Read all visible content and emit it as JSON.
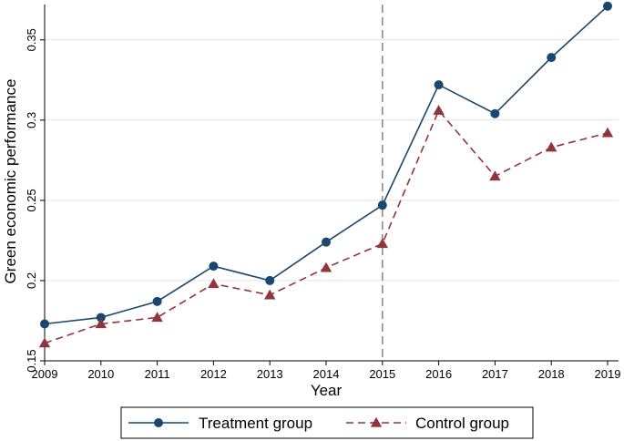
{
  "chart_data": {
    "type": "line",
    "title": "",
    "xlabel": "Year",
    "ylabel": "Green economic performance",
    "x": [
      2009,
      2010,
      2011,
      2012,
      2013,
      2014,
      2015,
      2016,
      2017,
      2018,
      2019
    ],
    "xticks": [
      "2009",
      "2010",
      "2011",
      "2012",
      "2013",
      "2014",
      "2015",
      "2016",
      "2017",
      "2018",
      "2019"
    ],
    "yticks": [
      {
        "value": 0.15,
        "label": "0.15"
      },
      {
        "value": 0.2,
        "label": "0.2"
      },
      {
        "value": 0.25,
        "label": "0.25"
      },
      {
        "value": 0.3,
        "label": "0.3"
      },
      {
        "value": 0.35,
        "label": "0.35"
      }
    ],
    "xlim": [
      2009,
      2019
    ],
    "ylim": [
      0.15,
      0.372
    ],
    "grid": "horizontal",
    "legend_position": "bottom",
    "reference_line": {
      "x": 2015,
      "style": "dashed",
      "color": "#8c8c8c"
    },
    "series": [
      {
        "name": "Treatment group",
        "marker": "circle",
        "line": "solid",
        "color": "#1a476f",
        "values": [
          0.173,
          0.177,
          0.187,
          0.209,
          0.2,
          0.224,
          0.247,
          0.322,
          0.304,
          0.339,
          0.371
        ]
      },
      {
        "name": "Control group",
        "marker": "triangle",
        "line": "dashed",
        "color": "#90353b",
        "values": [
          0.161,
          0.173,
          0.177,
          0.198,
          0.191,
          0.208,
          0.223,
          0.306,
          0.265,
          0.283,
          0.292
        ]
      }
    ]
  }
}
